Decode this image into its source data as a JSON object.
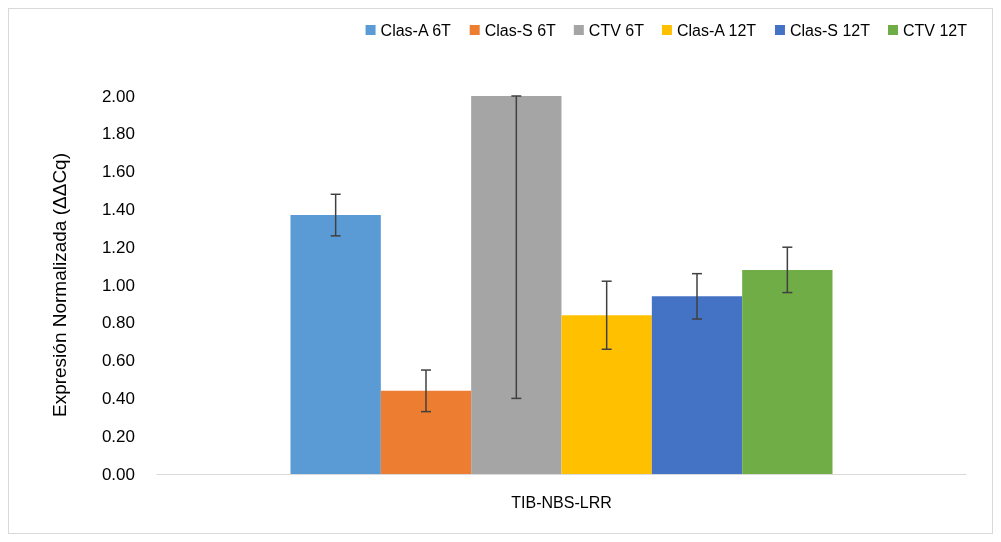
{
  "chart_data": {
    "type": "bar",
    "ylabel": "Expresión Normalizada (ΔΔCq)",
    "categories": [
      "TIB-NBS-LRR"
    ],
    "series": [
      {
        "name": "Clas-A 6T",
        "color": "#5b9bd5",
        "values": [
          1.37
        ],
        "errors": [
          [
            1.26,
            1.48
          ]
        ]
      },
      {
        "name": "Clas-S 6T",
        "color": "#ed7d31",
        "values": [
          0.44
        ],
        "errors": [
          [
            0.33,
            0.55
          ]
        ]
      },
      {
        "name": "CTV 6T",
        "color": "#a5a5a5",
        "values": [
          2.0
        ],
        "errors": [
          [
            0.4,
            2.0
          ]
        ]
      },
      {
        "name": "Clas-A 12T",
        "color": "#ffc000",
        "values": [
          0.84
        ],
        "errors": [
          [
            0.66,
            1.02
          ]
        ]
      },
      {
        "name": "Clas-S 12T",
        "color": "#4472c4",
        "values": [
          0.94
        ],
        "errors": [
          [
            0.82,
            1.06
          ]
        ]
      },
      {
        "name": "CTV 12T",
        "color": "#70ad47",
        "values": [
          1.08
        ],
        "errors": [
          [
            0.96,
            1.2
          ]
        ]
      }
    ],
    "ylim": [
      0,
      2
    ],
    "yticks": [
      {
        "value": 0,
        "label": "0.00"
      },
      {
        "value": 0.2,
        "label": "0.20"
      },
      {
        "value": 0.4,
        "label": "0.40"
      },
      {
        "value": 0.6,
        "label": "0.60"
      },
      {
        "value": 0.8,
        "label": "0.80"
      },
      {
        "value": 1,
        "label": "1.00"
      },
      {
        "value": 1.2,
        "label": "1.20"
      },
      {
        "value": 1.4,
        "label": "1.40"
      },
      {
        "value": 1.6,
        "label": "1.60"
      },
      {
        "value": 1.8,
        "label": "1.80"
      },
      {
        "value": 2,
        "label": "2.00"
      }
    ],
    "grid": false,
    "legend": "top right"
  }
}
